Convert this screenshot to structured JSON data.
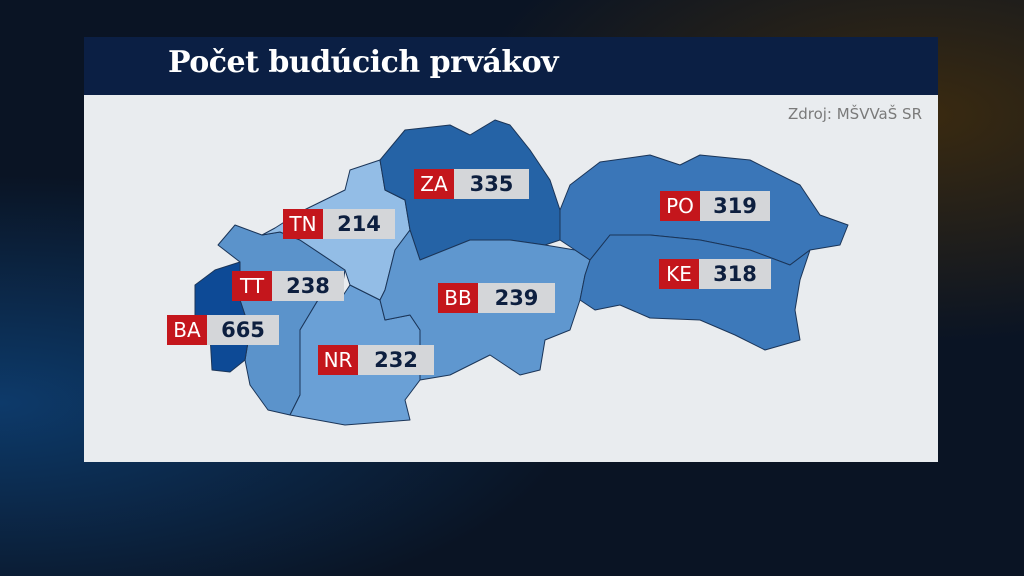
{
  "title": "Počet budúcich prvákov",
  "source": "Zdroj: MŠVVaŠ SR",
  "colors": {
    "header": "#0b1f44",
    "label_code_bg": "#c4161c",
    "label_value_bg": "#d4d6d9"
  },
  "regions": [
    {
      "code": "BA",
      "value": "665",
      "color": "#0d4a96"
    },
    {
      "code": "TT",
      "value": "238",
      "color": "#5b93cb"
    },
    {
      "code": "TN",
      "value": "214",
      "color": "#93bde6"
    },
    {
      "code": "NR",
      "value": "232",
      "color": "#6aa0d6"
    },
    {
      "code": "ZA",
      "value": "335",
      "color": "#2563a6"
    },
    {
      "code": "BB",
      "value": "239",
      "color": "#5f97cf"
    },
    {
      "code": "PO",
      "value": "319",
      "color": "#3a76b8"
    },
    {
      "code": "KE",
      "value": "318",
      "color": "#3d79ba"
    }
  ]
}
